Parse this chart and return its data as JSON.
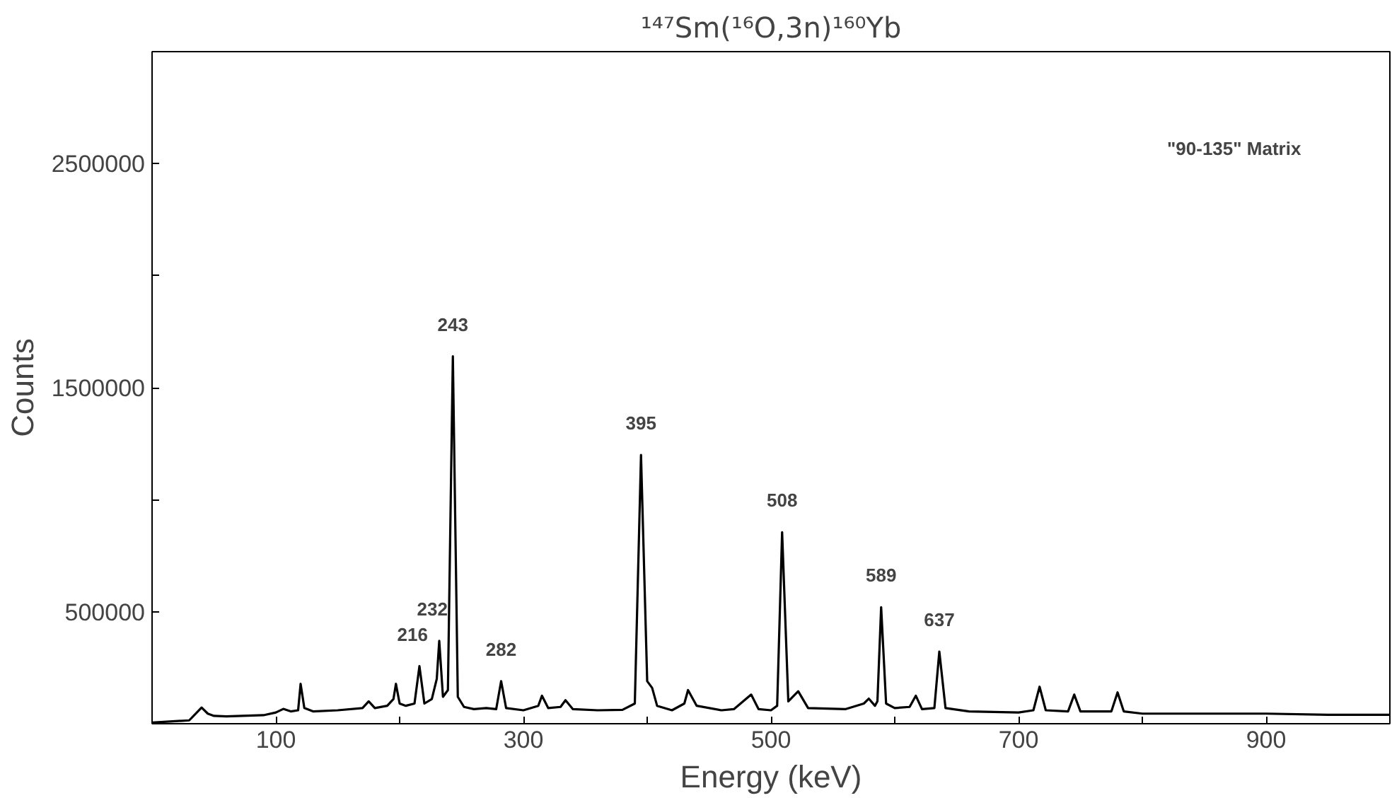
{
  "chart_data": {
    "type": "line",
    "title": "¹⁴⁷Sm(¹⁶O,3n)¹⁶⁰Yb",
    "xlabel": "Energy (keV)",
    "ylabel": "Counts",
    "xlim": [
      0,
      1000
    ],
    "ylim": [
      0,
      3000000
    ],
    "xticks": [
      100,
      {
        "value": 200,
        "label": null
      },
      300,
      {
        "value": 400,
        "label": null
      },
      500,
      {
        "value": 600,
        "label": null
      },
      700,
      {
        "value": 800,
        "label": null
      },
      900
    ],
    "yticks": [
      500000,
      {
        "value": 1000000,
        "label": null
      },
      1500000,
      {
        "value": 2000000,
        "label": null
      },
      2500000
    ],
    "grid": false,
    "marker": "none",
    "line_style": "solid",
    "series": [
      {
        "color": "#000000",
        "x": [
          0,
          30,
          40,
          45,
          50,
          60,
          90,
          100,
          106,
          112,
          118,
          120,
          123,
          130,
          150,
          170,
          175,
          180,
          190,
          195,
          197,
          200,
          205,
          212,
          216,
          220,
          226,
          230,
          232,
          235,
          239,
          243,
          247,
          252,
          260,
          270,
          278,
          282,
          286,
          300,
          312,
          315,
          320,
          330,
          334,
          340,
          360,
          380,
          390,
          395,
          400,
          404,
          408,
          420,
          430,
          433,
          440,
          460,
          470,
          484,
          490,
          500,
          505,
          509,
          514,
          522,
          530,
          560,
          575,
          579,
          584,
          586,
          589,
          593,
          600,
          612,
          617,
          622,
          632,
          636,
          641,
          660,
          700,
          712,
          717,
          722,
          740,
          745,
          750,
          775,
          780,
          785,
          800,
          850,
          900,
          950,
          1000
        ],
        "values": [
          5000,
          15000,
          72000,
          45000,
          35000,
          33000,
          38000,
          50000,
          66000,
          55000,
          60000,
          178000,
          70000,
          55000,
          60000,
          70000,
          100000,
          70000,
          80000,
          110000,
          178000,
          90000,
          80000,
          90000,
          257000,
          90000,
          110000,
          200000,
          370000,
          120000,
          150000,
          1640000,
          120000,
          75000,
          65000,
          70000,
          65000,
          190000,
          70000,
          60000,
          80000,
          125000,
          70000,
          75000,
          105000,
          65000,
          60000,
          62000,
          90000,
          1200000,
          190000,
          160000,
          80000,
          60000,
          90000,
          150000,
          80000,
          60000,
          65000,
          130000,
          65000,
          60000,
          80000,
          855000,
          100000,
          145000,
          70000,
          65000,
          90000,
          112000,
          80000,
          100000,
          520000,
          90000,
          70000,
          75000,
          125000,
          65000,
          70000,
          322000,
          70000,
          55000,
          50000,
          60000,
          165000,
          60000,
          55000,
          130000,
          55000,
          55000,
          140000,
          55000,
          45000,
          45000,
          45000,
          40000,
          40000
        ]
      }
    ],
    "annotations": [
      {
        "text": "216",
        "x": 216,
        "y": 257000
      },
      {
        "text": "232",
        "x": 232,
        "y": 370000
      },
      {
        "text": "243",
        "x": 243,
        "y": 1640000
      },
      {
        "text": "282",
        "x": 282,
        "y": 190000
      },
      {
        "text": "395",
        "x": 395,
        "y": 1200000
      },
      {
        "text": "508",
        "x": 509,
        "y": 855000
      },
      {
        "text": "589",
        "x": 589,
        "y": 520000
      },
      {
        "text": "637",
        "x": 636,
        "y": 322000
      },
      "\"90-135\" Matrix"
    ]
  }
}
